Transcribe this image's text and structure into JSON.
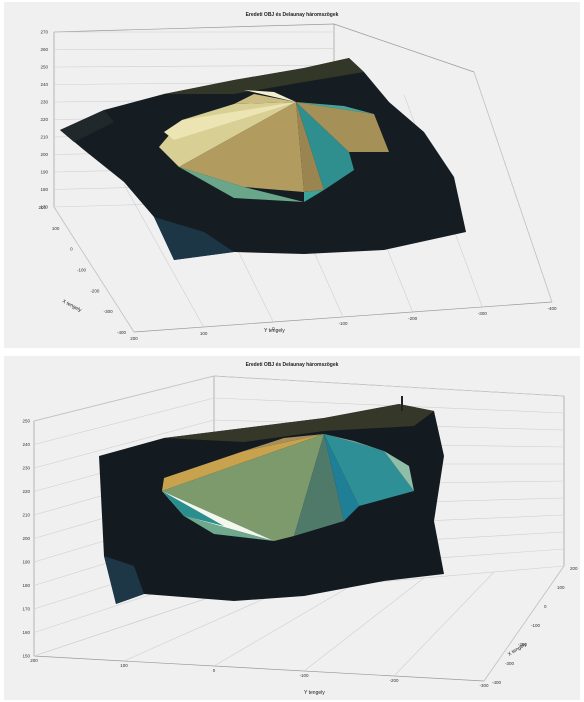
{
  "chart_data": [
    {
      "type": "surface3d",
      "title": "Eredeti OBJ és Delaunay háromszögek",
      "xlabel": "X tengely",
      "ylabel": "Y tengely",
      "zlabel": "",
      "x_ticks": [
        "-400",
        "-300",
        "-200",
        "-100",
        "0",
        "100",
        "200"
      ],
      "y_ticks": [
        "200",
        "100",
        "0",
        "-100",
        "-200",
        "-300",
        "-400"
      ],
      "z_ticks": [
        "170",
        "180",
        "190",
        "200",
        "210",
        "220",
        "230",
        "240",
        "250",
        "260",
        "270"
      ],
      "grid": true,
      "colors": {
        "terrain": "#141c22",
        "tri_gold": "#b09a5c",
        "tri_cream": "#e8dfa8",
        "tri_teal": "#2f9a96",
        "tri_green": "#6fa88a"
      }
    },
    {
      "type": "surface3d",
      "title": "Eredeti OBJ és Delaunay háromszögek",
      "xlabel": "X tengely",
      "ylabel": "Y tengely",
      "zlabel": "",
      "x_ticks": [
        "200",
        "100",
        "0",
        "-100",
        "-200",
        "-300",
        "-400"
      ],
      "y_ticks": [
        "200",
        "100",
        "0",
        "-100",
        "-200",
        "-300"
      ],
      "z_ticks": [
        "150",
        "160",
        "170",
        "180",
        "190",
        "200",
        "210",
        "220",
        "230",
        "240",
        "250"
      ],
      "grid": true,
      "colors": {
        "terrain": "#141c22",
        "tri_gold": "#c9a24e",
        "tri_white": "#f2f6ec",
        "tri_teal": "#2a8f96",
        "tri_green": "#7f9a6a"
      }
    }
  ]
}
